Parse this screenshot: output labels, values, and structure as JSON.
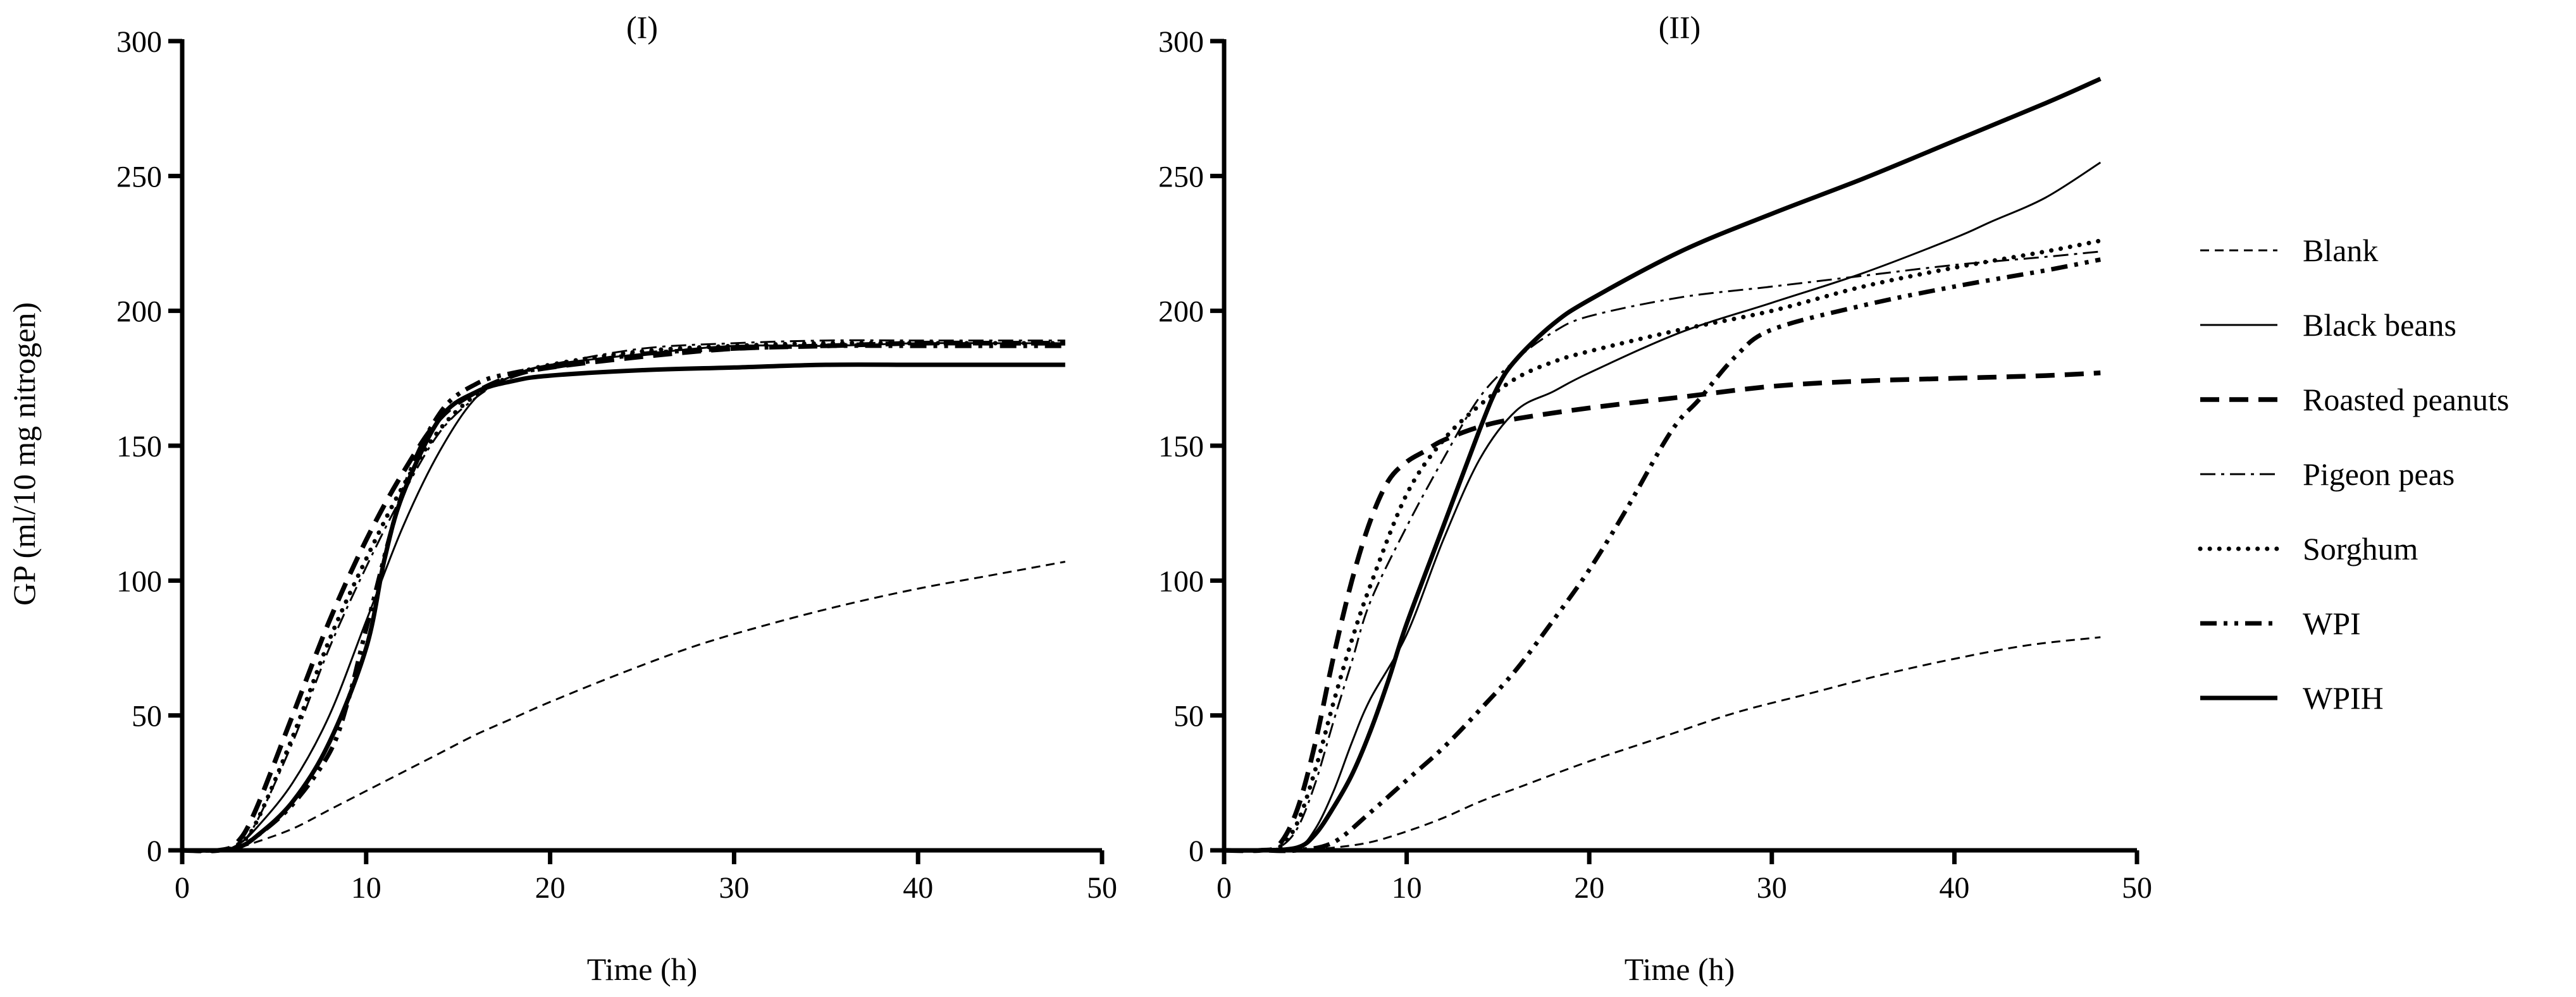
{
  "chart_data": [
    {
      "type": "line",
      "title": "(I)",
      "xlabel": "Time (h)",
      "ylabel": "GP (ml/10 mg nitrogen)",
      "xlim": [
        0,
        50
      ],
      "ylim": [
        0,
        300
      ],
      "xticks": [
        0,
        10,
        20,
        30,
        40,
        50
      ],
      "yticks": [
        0,
        50,
        100,
        150,
        200,
        250,
        300
      ],
      "grid": false,
      "series": [
        {
          "name": "Blank",
          "style": "dashed-thin",
          "x": [
            0,
            2,
            3,
            4,
            6,
            8,
            10,
            12,
            14,
            16,
            18,
            20,
            24,
            28,
            32,
            36,
            40,
            44,
            48
          ],
          "y": [
            0,
            0,
            1,
            3,
            8,
            15,
            22,
            29,
            36,
            43,
            49,
            55,
            66,
            76,
            84,
            91,
            97,
            102,
            107
          ]
        },
        {
          "name": "Black beans",
          "style": "solid-thin",
          "x": [
            0,
            2,
            3,
            4,
            6,
            8,
            10,
            12,
            14,
            16,
            18,
            20,
            25,
            30,
            35,
            40,
            45,
            48
          ],
          "y": [
            0,
            0,
            2,
            8,
            25,
            50,
            85,
            120,
            148,
            168,
            176,
            180,
            184,
            187,
            187,
            188,
            188,
            188
          ]
        },
        {
          "name": "Roasted peanuts",
          "style": "dashed-thick",
          "x": [
            0,
            2,
            3,
            4,
            6,
            8,
            10,
            12,
            14,
            16,
            18,
            20,
            25,
            30,
            35,
            40,
            45,
            48
          ],
          "y": [
            0,
            0,
            3,
            15,
            50,
            85,
            115,
            140,
            160,
            170,
            176,
            179,
            183,
            186,
            187,
            188,
            188,
            188
          ]
        },
        {
          "name": "Pigeon peas",
          "style": "dashdot-thin",
          "x": [
            0,
            2,
            3,
            4,
            6,
            8,
            10,
            12,
            14,
            16,
            18,
            20,
            25,
            30,
            35,
            40,
            45,
            48
          ],
          "y": [
            0,
            0,
            2,
            10,
            40,
            75,
            105,
            132,
            155,
            168,
            176,
            180,
            186,
            188,
            189,
            189,
            189,
            189
          ]
        },
        {
          "name": "Sorghum",
          "style": "dotted",
          "x": [
            0,
            2,
            3,
            4,
            6,
            8,
            10,
            12,
            14,
            16,
            18,
            20,
            25,
            30,
            35,
            40,
            45,
            48
          ],
          "y": [
            0,
            0,
            2,
            10,
            42,
            78,
            108,
            135,
            156,
            169,
            176,
            180,
            185,
            187,
            188,
            188,
            188,
            188
          ]
        },
        {
          "name": "WPI",
          "style": "dashdotdot-thick",
          "x": [
            0,
            2,
            3,
            4,
            6,
            8,
            9,
            10,
            12,
            14,
            16,
            18,
            20,
            25,
            30,
            35,
            40,
            45,
            48
          ],
          "y": [
            0,
            0,
            1,
            5,
            17,
            36,
            55,
            82,
            133,
            162,
            173,
            177,
            179,
            184,
            186,
            187,
            187,
            187,
            187
          ]
        },
        {
          "name": "WPIH",
          "style": "solid-thick",
          "x": [
            0,
            2,
            3,
            4,
            6,
            8,
            10,
            11,
            12,
            14,
            16,
            18,
            20,
            25,
            30,
            35,
            40,
            45,
            48
          ],
          "y": [
            0,
            0,
            1,
            5,
            18,
            40,
            75,
            108,
            132,
            160,
            170,
            174,
            176,
            178,
            179,
            180,
            180,
            180,
            180
          ]
        }
      ]
    },
    {
      "type": "line",
      "title": "(II)",
      "xlabel": "Time (h)",
      "ylabel": "",
      "xlim": [
        0,
        50
      ],
      "ylim": [
        0,
        300
      ],
      "xticks": [
        0,
        10,
        20,
        30,
        40,
        50
      ],
      "yticks": [
        0,
        50,
        100,
        150,
        200,
        250,
        300
      ],
      "grid": false,
      "series": [
        {
          "name": "Blank",
          "style": "dashed-thin",
          "x": [
            0,
            2,
            4,
            6,
            8,
            10,
            12,
            14,
            16,
            20,
            24,
            28,
            32,
            36,
            40,
            44,
            48
          ],
          "y": [
            0,
            0,
            0,
            1,
            3,
            7,
            12,
            18,
            23,
            33,
            42,
            51,
            58,
            65,
            71,
            76,
            79
          ]
        },
        {
          "name": "Black beans",
          "style": "solid-thin",
          "x": [
            0,
            2,
            4,
            5,
            6,
            7,
            8,
            10,
            12,
            14,
            16,
            18,
            20,
            25,
            30,
            35,
            40,
            42,
            45,
            48
          ],
          "y": [
            0,
            0,
            1,
            8,
            22,
            40,
            56,
            80,
            115,
            145,
            163,
            170,
            177,
            192,
            203,
            214,
            227,
            233,
            242,
            255
          ]
        },
        {
          "name": "Roasted peanuts",
          "style": "dashed-thick",
          "x": [
            0,
            2,
            3,
            4,
            5,
            6,
            7,
            8,
            9,
            10,
            11,
            12,
            14,
            16,
            20,
            25,
            30,
            35,
            40,
            45,
            48
          ],
          "y": [
            0,
            0,
            2,
            15,
            40,
            72,
            100,
            122,
            137,
            144,
            148,
            152,
            157,
            160,
            164,
            168,
            172,
            174,
            175,
            176,
            177
          ]
        },
        {
          "name": "Pigeon peas",
          "style": "dashdot-thin",
          "x": [
            0,
            2,
            3,
            4,
            5,
            6,
            7,
            8,
            10,
            12,
            14,
            16,
            18,
            20,
            25,
            30,
            35,
            40,
            45,
            48
          ],
          "y": [
            0,
            0,
            1,
            8,
            25,
            48,
            70,
            92,
            120,
            145,
            168,
            182,
            192,
            198,
            205,
            209,
            213,
            217,
            220,
            222
          ]
        },
        {
          "name": "Sorghum",
          "style": "dotted",
          "x": [
            0,
            2,
            3,
            4,
            5,
            6,
            7,
            8,
            10,
            12,
            14,
            16,
            18,
            20,
            25,
            30,
            35,
            40,
            45,
            48
          ],
          "y": [
            0,
            0,
            1,
            10,
            30,
            55,
            78,
            98,
            132,
            152,
            165,
            175,
            181,
            185,
            193,
            200,
            209,
            216,
            222,
            226
          ]
        },
        {
          "name": "WPI",
          "style": "dashdotdot-thick",
          "x": [
            0,
            2,
            4,
            6,
            8,
            10,
            12,
            14,
            16,
            18,
            20,
            22,
            24,
            25,
            26,
            28,
            30,
            35,
            40,
            45,
            48
          ],
          "y": [
            0,
            0,
            0,
            3,
            14,
            26,
            38,
            52,
            67,
            85,
            104,
            126,
            150,
            160,
            167,
            183,
            193,
            202,
            209,
            215,
            219
          ]
        },
        {
          "name": "WPIH",
          "style": "solid-thick",
          "x": [
            0,
            2,
            4,
            5,
            6,
            7,
            8,
            9,
            10,
            12,
            14,
            15,
            16,
            18,
            20,
            25,
            30,
            35,
            40,
            45,
            48
          ],
          "y": [
            0,
            0,
            1,
            6,
            16,
            28,
            44,
            63,
            84,
            120,
            156,
            172,
            182,
            195,
            204,
            222,
            236,
            249,
            263,
            277,
            286
          ]
        }
      ]
    }
  ],
  "legend": {
    "entries": [
      "Blank",
      "Black beans",
      "Roasted peanuts",
      "Pigeon peas",
      "Sorghum",
      "WPI",
      "WPIH"
    ]
  }
}
